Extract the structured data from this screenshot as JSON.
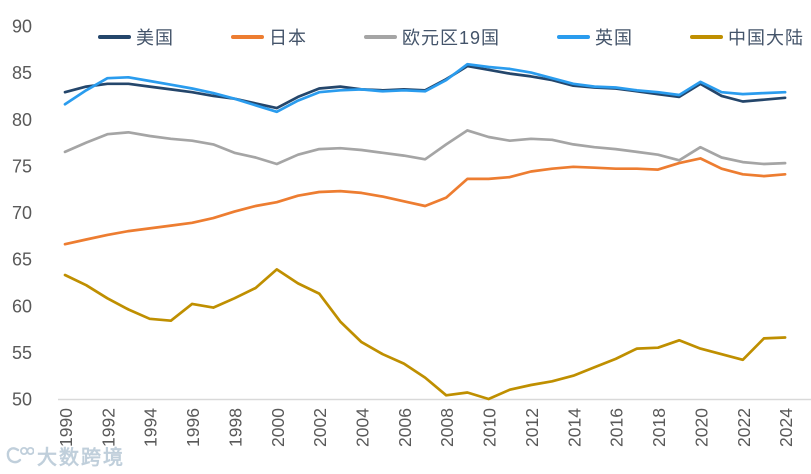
{
  "watermark": {
    "text": "大数跨境"
  },
  "chart_data": {
    "type": "line",
    "title": "",
    "xlabel": "",
    "ylabel": "",
    "x": [
      1990,
      1991,
      1992,
      1993,
      1994,
      1995,
      1996,
      1997,
      1998,
      1999,
      2000,
      2001,
      2002,
      2003,
      2004,
      2005,
      2006,
      2007,
      2008,
      2009,
      2010,
      2011,
      2012,
      2013,
      2014,
      2015,
      2016,
      2017,
      2018,
      2019,
      2020,
      2021,
      2022,
      2023,
      2024
    ],
    "x_tick_labels": [
      "1990",
      "1992",
      "1994",
      "1996",
      "1998",
      "2000",
      "2002",
      "2004",
      "2006",
      "2008",
      "2010",
      "2012",
      "2014",
      "2016",
      "2018",
      "2020",
      "2022",
      "2024"
    ],
    "y_ticks": [
      50,
      55,
      60,
      65,
      70,
      75,
      80,
      85,
      90
    ],
    "y_tick_labels": [
      "50",
      "55",
      "60",
      "65",
      "70",
      "75",
      "80",
      "85",
      "90"
    ],
    "ylim": [
      50,
      90
    ],
    "xlim": [
      1990,
      2024
    ],
    "grid": false,
    "legend_position": "top",
    "axis_label_color": "#595959",
    "axis_line_color": "#d9d9d9",
    "series": [
      {
        "name": "美国",
        "color": "#24466b",
        "values": [
          82.9,
          83.5,
          83.8,
          83.8,
          83.5,
          83.2,
          82.9,
          82.5,
          82.2,
          81.7,
          81.2,
          82.4,
          83.3,
          83.5,
          83.2,
          83.1,
          83.2,
          83.1,
          84.3,
          85.7,
          85.3,
          84.9,
          84.6,
          84.2,
          83.6,
          83.4,
          83.3,
          83.0,
          82.7,
          82.4,
          83.8,
          82.5,
          81.9,
          82.1,
          82.3
        ]
      },
      {
        "name": "日本",
        "color": "#ed7d31",
        "values": [
          66.6,
          67.1,
          67.6,
          68.0,
          68.3,
          68.6,
          68.9,
          69.4,
          70.1,
          70.7,
          71.1,
          71.8,
          72.2,
          72.3,
          72.1,
          71.7,
          71.2,
          70.7,
          71.6,
          73.6,
          73.6,
          73.8,
          74.4,
          74.7,
          74.9,
          74.8,
          74.7,
          74.7,
          74.6,
          75.3,
          75.8,
          74.7,
          74.1,
          73.9,
          74.1
        ]
      },
      {
        "name": "欧元区19国",
        "color": "#a5a5a5",
        "values": [
          76.5,
          77.5,
          78.4,
          78.6,
          78.2,
          77.9,
          77.7,
          77.3,
          76.4,
          75.9,
          75.2,
          76.2,
          76.8,
          76.9,
          76.7,
          76.4,
          76.1,
          75.7,
          77.3,
          78.8,
          78.1,
          77.7,
          77.9,
          77.8,
          77.3,
          77.0,
          76.8,
          76.5,
          76.2,
          75.6,
          77.0,
          75.9,
          75.4,
          75.2,
          75.3
        ]
      },
      {
        "name": "英国",
        "color": "#2a9cee",
        "values": [
          81.6,
          83.1,
          84.4,
          84.5,
          84.1,
          83.7,
          83.3,
          82.8,
          82.2,
          81.5,
          80.8,
          82.0,
          82.9,
          83.1,
          83.2,
          83.0,
          83.1,
          83.0,
          84.2,
          85.9,
          85.6,
          85.4,
          85.0,
          84.4,
          83.8,
          83.5,
          83.4,
          83.1,
          82.9,
          82.6,
          84.0,
          82.9,
          82.7,
          82.8,
          82.9
        ]
      },
      {
        "name": "中国大陆",
        "color": "#bf8f00",
        "values": [
          63.3,
          62.2,
          60.8,
          59.6,
          58.6,
          58.4,
          60.2,
          59.8,
          60.8,
          61.9,
          63.9,
          62.4,
          61.3,
          58.3,
          56.1,
          54.8,
          53.8,
          52.3,
          50.4,
          50.7,
          50.0,
          51.0,
          51.5,
          51.9,
          52.5,
          53.4,
          54.3,
          55.4,
          55.5,
          56.3,
          55.4,
          54.8,
          54.2,
          56.5,
          56.6
        ]
      }
    ]
  }
}
